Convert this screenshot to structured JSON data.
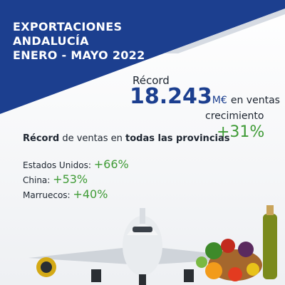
{
  "header": {
    "lines": [
      "EXPORTACIONES",
      "ANDALUCÍA",
      "ENERO - MAYO 2022"
    ]
  },
  "record": {
    "label": "Récord",
    "amount": "18.243",
    "unit": "M€",
    "suffix": "en ventas"
  },
  "growth": {
    "label": "crecimiento",
    "value": "+31%"
  },
  "provinces": {
    "bold_start": "Récord",
    "middle": "de ventas en",
    "bold_end": "todas las provincias"
  },
  "countries": [
    {
      "name": "Estados Unidos:",
      "value": "+66%"
    },
    {
      "name": "China:",
      "value": "+53%"
    },
    {
      "name": "Marruecos:",
      "value": "+40%"
    }
  ]
}
